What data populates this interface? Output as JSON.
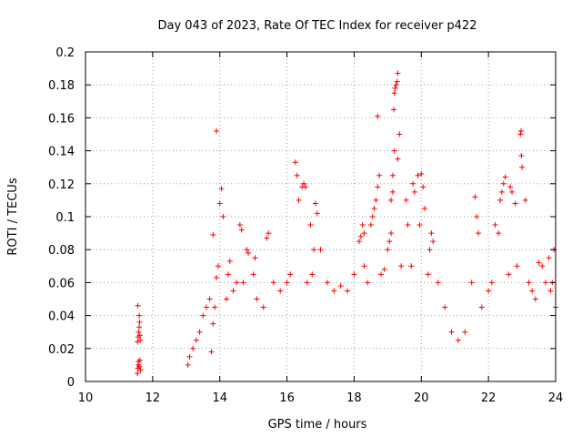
{
  "chart_data": {
    "type": "scatter",
    "title": "Day 043 of 2023, Rate Of TEC Index for receiver p422",
    "xlabel": "GPS time / hours",
    "ylabel": "ROTI / TECUs",
    "xlim": [
      10,
      24
    ],
    "ylim": [
      0,
      0.2
    ],
    "x_ticks": [
      "10",
      "12",
      "14",
      "16",
      "18",
      "20",
      "22",
      "24"
    ],
    "y_ticks": [
      "0",
      "0.02",
      "0.04",
      "0.06",
      "0.08",
      "0.1",
      "0.12",
      "0.14",
      "0.16",
      "0.18",
      "0.2"
    ],
    "grid": true,
    "marker": "+",
    "color": "#ff0000",
    "series": [
      {
        "points": [
          [
            11.55,
            0.005
          ],
          [
            11.56,
            0.008
          ],
          [
            11.57,
            0.01
          ],
          [
            11.58,
            0.012
          ],
          [
            11.6,
            0.009
          ],
          [
            11.62,
            0.013
          ],
          [
            11.64,
            0.007
          ],
          [
            11.55,
            0.024
          ],
          [
            11.57,
            0.027
          ],
          [
            11.58,
            0.03
          ],
          [
            11.6,
            0.033
          ],
          [
            11.61,
            0.036
          ],
          [
            11.62,
            0.028
          ],
          [
            11.63,
            0.025
          ],
          [
            11.56,
            0.046
          ],
          [
            11.6,
            0.04
          ],
          [
            13.75,
            0.018
          ],
          [
            13.9,
            0.152
          ],
          [
            14.05,
            0.117
          ],
          [
            14.0,
            0.108
          ],
          [
            14.1,
            0.1
          ],
          [
            13.8,
            0.089
          ],
          [
            13.95,
            0.07
          ],
          [
            13.9,
            0.063
          ],
          [
            14.3,
            0.073
          ],
          [
            14.25,
            0.065
          ],
          [
            14.6,
            0.095
          ],
          [
            14.65,
            0.092
          ],
          [
            14.8,
            0.08
          ],
          [
            14.85,
            0.078
          ],
          [
            15.05,
            0.075
          ],
          [
            15.0,
            0.065
          ],
          [
            15.45,
            0.09
          ],
          [
            15.4,
            0.087
          ],
          [
            16.25,
            0.133
          ],
          [
            16.3,
            0.125
          ],
          [
            16.35,
            0.11
          ],
          [
            16.5,
            0.12
          ],
          [
            16.55,
            0.118
          ],
          [
            16.45,
            0.118
          ],
          [
            16.7,
            0.095
          ],
          [
            16.85,
            0.108
          ],
          [
            16.9,
            0.102
          ],
          [
            16.8,
            0.08
          ],
          [
            17.0,
            0.08
          ],
          [
            18.2,
            0.088
          ],
          [
            18.25,
            0.095
          ],
          [
            18.3,
            0.09
          ],
          [
            18.15,
            0.085
          ],
          [
            18.3,
            0.07
          ],
          [
            18.5,
            0.095
          ],
          [
            18.55,
            0.1
          ],
          [
            18.6,
            0.105
          ],
          [
            18.65,
            0.11
          ],
          [
            18.7,
            0.118
          ],
          [
            18.75,
            0.125
          ],
          [
            18.7,
            0.161
          ],
          [
            19.0,
            0.08
          ],
          [
            19.05,
            0.085
          ],
          [
            19.1,
            0.09
          ],
          [
            19.15,
            0.115
          ],
          [
            19.2,
            0.14
          ],
          [
            19.15,
            0.125
          ],
          [
            19.1,
            0.11
          ],
          [
            19.18,
            0.165
          ],
          [
            19.2,
            0.175
          ],
          [
            19.25,
            0.18
          ],
          [
            19.3,
            0.187
          ],
          [
            19.22,
            0.178
          ],
          [
            19.28,
            0.182
          ],
          [
            19.35,
            0.15
          ],
          [
            19.3,
            0.135
          ],
          [
            19.55,
            0.11
          ],
          [
            19.6,
            0.095
          ],
          [
            19.75,
            0.12
          ],
          [
            19.8,
            0.115
          ],
          [
            19.9,
            0.125
          ],
          [
            20.0,
            0.126
          ],
          [
            20.05,
            0.118
          ],
          [
            20.1,
            0.105
          ],
          [
            19.95,
            0.095
          ],
          [
            20.3,
            0.09
          ],
          [
            20.35,
            0.085
          ],
          [
            20.25,
            0.08
          ],
          [
            21.6,
            0.112
          ],
          [
            21.65,
            0.1
          ],
          [
            21.7,
            0.09
          ],
          [
            22.2,
            0.095
          ],
          [
            22.3,
            0.09
          ],
          [
            22.35,
            0.11
          ],
          [
            22.4,
            0.115
          ],
          [
            22.5,
            0.124
          ],
          [
            22.45,
            0.12
          ],
          [
            22.65,
            0.118
          ],
          [
            22.7,
            0.115
          ],
          [
            22.8,
            0.108
          ],
          [
            22.95,
            0.15
          ],
          [
            22.97,
            0.152
          ],
          [
            22.98,
            0.137
          ],
          [
            23.0,
            0.13
          ],
          [
            23.1,
            0.11
          ],
          [
            23.5,
            0.072
          ],
          [
            23.6,
            0.07
          ],
          [
            23.8,
            0.075
          ],
          [
            23.95,
            0.08
          ],
          [
            23.9,
            0.06
          ],
          [
            13.05,
            0.01
          ],
          [
            13.1,
            0.015
          ],
          [
            13.2,
            0.02
          ],
          [
            13.3,
            0.025
          ],
          [
            13.4,
            0.03
          ],
          [
            13.5,
            0.04
          ],
          [
            13.6,
            0.045
          ],
          [
            13.7,
            0.05
          ],
          [
            13.8,
            0.035
          ],
          [
            13.85,
            0.045
          ],
          [
            14.2,
            0.05
          ],
          [
            14.4,
            0.055
          ],
          [
            14.5,
            0.06
          ],
          [
            14.7,
            0.06
          ],
          [
            15.1,
            0.05
          ],
          [
            15.3,
            0.045
          ],
          [
            15.6,
            0.06
          ],
          [
            15.8,
            0.055
          ],
          [
            16.0,
            0.06
          ],
          [
            16.1,
            0.065
          ],
          [
            16.6,
            0.06
          ],
          [
            16.75,
            0.065
          ],
          [
            17.2,
            0.06
          ],
          [
            17.4,
            0.055
          ],
          [
            17.6,
            0.058
          ],
          [
            17.8,
            0.055
          ],
          [
            18.0,
            0.065
          ],
          [
            18.4,
            0.06
          ],
          [
            18.8,
            0.065
          ],
          [
            18.9,
            0.068
          ],
          [
            19.4,
            0.07
          ],
          [
            19.7,
            0.07
          ],
          [
            20.2,
            0.065
          ],
          [
            20.5,
            0.06
          ],
          [
            20.7,
            0.045
          ],
          [
            20.9,
            0.03
          ],
          [
            21.1,
            0.025
          ],
          [
            21.3,
            0.03
          ],
          [
            21.5,
            0.06
          ],
          [
            21.8,
            0.045
          ],
          [
            22.0,
            0.055
          ],
          [
            22.1,
            0.06
          ],
          [
            22.6,
            0.065
          ],
          [
            22.85,
            0.07
          ],
          [
            23.2,
            0.06
          ],
          [
            23.3,
            0.055
          ],
          [
            23.4,
            0.05
          ],
          [
            23.7,
            0.06
          ],
          [
            23.85,
            0.055
          ],
          [
            24.0,
            0.045
          ]
        ]
      }
    ]
  }
}
